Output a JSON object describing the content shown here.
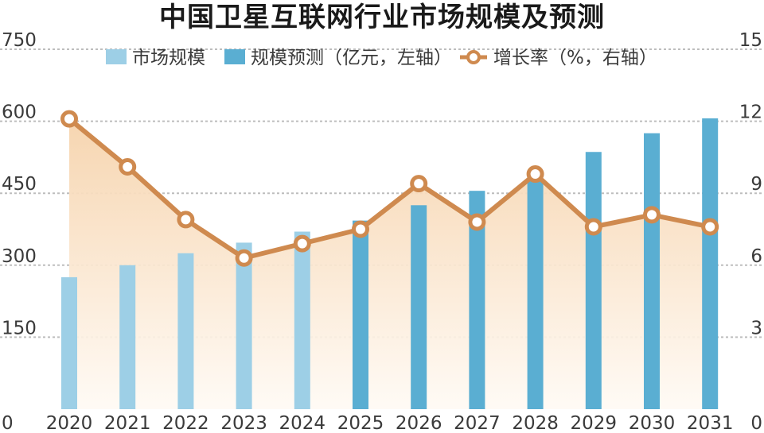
{
  "colors": {
    "actual_bar": "#9dcfe6",
    "forecast_bar": "#5aaed2",
    "growth_line": "#cf8a4f",
    "grid": "#bdbdbd",
    "area_top": "#f6d3ac",
    "area_bottom": "#fffaf4"
  },
  "chart_data": {
    "type": "bar",
    "title": "中国卫星互联网行业市场规模及预测",
    "categories": [
      "2020",
      "2021",
      "2022",
      "2023",
      "2024",
      "2025",
      "2026",
      "2027",
      "2028",
      "2029",
      "2030",
      "2031"
    ],
    "series": [
      {
        "name": "市场规模",
        "kind": "bar",
        "axis": "left",
        "values": [
          275,
          300,
          325,
          347,
          370,
          null,
          null,
          null,
          null,
          null,
          null,
          null
        ]
      },
      {
        "name": "规模预测（亿元，左轴）",
        "kind": "bar",
        "axis": "left",
        "values": [
          null,
          null,
          null,
          null,
          null,
          393,
          425,
          455,
          480,
          536,
          575,
          606
        ]
      },
      {
        "name": "增长率（%，右轴）",
        "kind": "line",
        "axis": "right",
        "values": [
          12.1,
          10.1,
          7.9,
          6.3,
          6.9,
          7.5,
          9.4,
          7.8,
          9.8,
          7.6,
          8.1,
          7.6
        ]
      }
    ],
    "y_left": {
      "min": 0,
      "max": 750,
      "ticks": [
        "0",
        "150",
        "300",
        "450",
        "600",
        "750"
      ]
    },
    "y_right": {
      "min": 0,
      "max": 15,
      "ticks": [
        "0",
        "3",
        "6",
        "9",
        "12",
        "15"
      ]
    },
    "grid": true,
    "legend_position": "top"
  }
}
